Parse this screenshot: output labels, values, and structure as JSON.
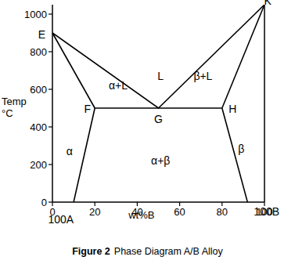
{
  "chart_data": {
    "type": "line",
    "xlabel": "wt%B",
    "ylabel": "Temp °C",
    "caption_label": "Figure 2",
    "caption": "Phase Diagram A/B Alloy",
    "xlim": [
      0,
      100
    ],
    "ylim": [
      0,
      1050
    ],
    "xticks": [
      0,
      20,
      40,
      60,
      80,
      100
    ],
    "yticks": [
      0,
      200,
      400,
      600,
      800,
      1000
    ],
    "color": "#000000",
    "series": [
      {
        "x": [
          0,
          50,
          100
        ],
        "values": [
          900,
          500,
          1050
        ]
      },
      {
        "x": [
          0,
          20
        ],
        "values": [
          900,
          500
        ]
      },
      {
        "x": [
          100,
          80
        ],
        "values": [
          1050,
          500
        ]
      },
      {
        "x": [
          20,
          80
        ],
        "values": [
          500,
          500
        ]
      },
      {
        "x": [
          20,
          10
        ],
        "values": [
          500,
          0
        ]
      },
      {
        "x": [
          80,
          92
        ],
        "values": [
          500,
          0
        ]
      }
    ],
    "annotations": [
      {
        "text": "E",
        "x": -5,
        "y": 890
      },
      {
        "text": "F",
        "x": 16.5,
        "y": 495
      },
      {
        "text": "G",
        "x": 50,
        "y": 440
      },
      {
        "text": "H",
        "x": 85,
        "y": 495
      },
      {
        "text": "K",
        "x": 101.5,
        "y": 1070
      },
      {
        "text": "L",
        "x": 51,
        "y": 670
      },
      {
        "text": "α+L",
        "x": 31,
        "y": 620
      },
      {
        "text": "β+L",
        "x": 71,
        "y": 670
      },
      {
        "text": "α",
        "x": 8,
        "y": 270
      },
      {
        "text": "β",
        "x": 89,
        "y": 285
      },
      {
        "text": "α+β",
        "x": 51,
        "y": 220
      },
      {
        "text": "100A",
        "x": 4,
        "y": -92
      },
      {
        "text": "100B",
        "x": 101,
        "y": -50
      }
    ]
  }
}
